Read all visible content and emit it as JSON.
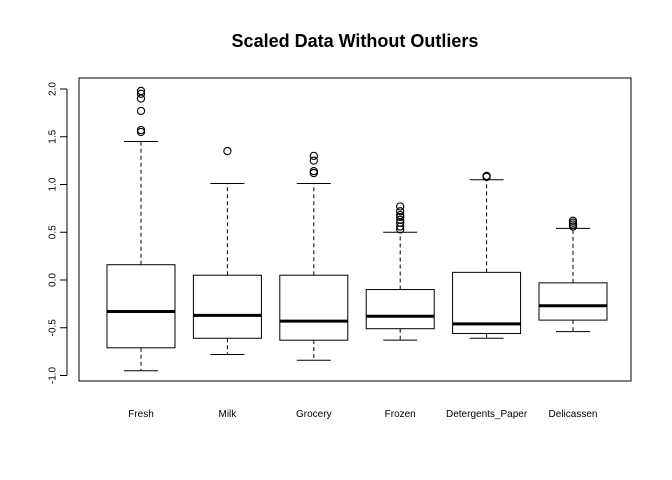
{
  "chart_data": {
    "type": "box",
    "title": "Scaled Data Without Outliers",
    "xlabel": "",
    "ylabel": "",
    "ylim": [
      -1.05,
      2.05
    ],
    "yticks": [
      -1.0,
      -0.5,
      0.0,
      0.5,
      1.0,
      1.5,
      2.0
    ],
    "ytick_labels": [
      "-1.0",
      "-0.5",
      "0.0",
      "0.5",
      "1.0",
      "1.5",
      "2.0"
    ],
    "grid": false,
    "legend": "none",
    "colors": {
      "box_fill": "#ffffff",
      "stroke": "#000000"
    },
    "categories": [
      "Fresh",
      "Milk",
      "Grocery",
      "Frozen",
      "Detergents_Paper",
      "Delicassen"
    ],
    "boxes": [
      {
        "whisker_low": -0.95,
        "q1": -0.71,
        "median": -0.33,
        "q3": 0.16,
        "whisker_high": 1.45,
        "outliers": [
          1.55,
          1.57,
          1.77,
          1.9,
          1.95,
          1.98
        ]
      },
      {
        "whisker_low": -0.78,
        "q1": -0.61,
        "median": -0.37,
        "q3": 0.05,
        "whisker_high": 1.01,
        "outliers": [
          1.35
        ]
      },
      {
        "whisker_low": -0.84,
        "q1": -0.63,
        "median": -0.43,
        "q3": 0.05,
        "whisker_high": 1.01,
        "outliers": [
          1.12,
          1.14,
          1.25,
          1.3
        ]
      },
      {
        "whisker_low": -0.63,
        "q1": -0.51,
        "median": -0.38,
        "q3": -0.1,
        "whisker_high": 0.5,
        "outliers": [
          0.53,
          0.56,
          0.6,
          0.63,
          0.66,
          0.68,
          0.72,
          0.77
        ]
      },
      {
        "whisker_low": -0.61,
        "q1": -0.56,
        "median": -0.46,
        "q3": 0.08,
        "whisker_high": 1.05,
        "outliers": [
          1.08,
          1.09
        ]
      },
      {
        "whisker_low": -0.54,
        "q1": -0.42,
        "median": -0.27,
        "q3": -0.03,
        "whisker_high": 0.54,
        "outliers": [
          0.56,
          0.58,
          0.6,
          0.62
        ]
      }
    ]
  }
}
